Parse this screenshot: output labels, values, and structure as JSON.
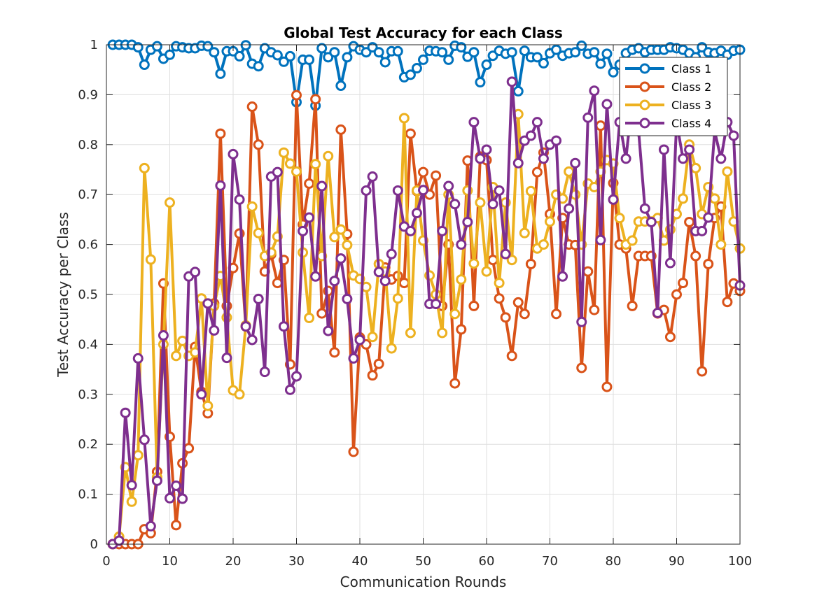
{
  "chart_data": {
    "type": "line",
    "title": "Global Test Accuracy for each Class",
    "xlabel": "Communication Rounds",
    "ylabel": "Test Accuracy per Class",
    "xlim": [
      0,
      100
    ],
    "ylim": [
      0,
      1
    ],
    "xticks": [
      0,
      10,
      20,
      30,
      40,
      50,
      60,
      70,
      80,
      90,
      100
    ],
    "yticks": [
      0,
      0.1,
      0.2,
      0.3,
      0.4,
      0.5,
      0.6,
      0.7,
      0.8,
      0.9,
      1
    ],
    "grid": true,
    "legend_position": "top-right",
    "x": [
      1,
      2,
      3,
      4,
      5,
      6,
      7,
      8,
      9,
      10,
      11,
      12,
      13,
      14,
      15,
      16,
      17,
      18,
      19,
      20,
      21,
      22,
      23,
      24,
      25,
      26,
      27,
      28,
      29,
      30,
      31,
      32,
      33,
      34,
      35,
      36,
      37,
      38,
      39,
      40,
      41,
      42,
      43,
      44,
      45,
      46,
      47,
      48,
      49,
      50,
      51,
      52,
      53,
      54,
      55,
      56,
      57,
      58,
      59,
      60,
      61,
      62,
      63,
      64,
      65,
      66,
      67,
      68,
      69,
      70,
      71,
      72,
      73,
      74,
      75,
      76,
      77,
      78,
      79,
      80,
      81,
      82,
      83,
      84,
      85,
      86,
      87,
      88,
      89,
      90,
      91,
      92,
      93,
      94,
      95,
      96,
      97,
      98,
      99,
      100
    ],
    "series": [
      {
        "name": "Class 1",
        "color": "#0072BD",
        "values": [
          1.0,
          1.0,
          1.0,
          1.0,
          0.995,
          0.96,
          0.99,
          0.997,
          0.972,
          0.98,
          0.997,
          0.995,
          0.993,
          0.993,
          0.998,
          0.997,
          0.985,
          0.942,
          0.987,
          0.987,
          0.977,
          0.999,
          0.962,
          0.957,
          0.993,
          0.985,
          0.979,
          0.966,
          0.977,
          0.885,
          0.97,
          0.97,
          0.878,
          0.993,
          0.975,
          0.985,
          0.918,
          0.975,
          0.997,
          0.99,
          0.985,
          0.995,
          0.985,
          0.965,
          0.987,
          0.987,
          0.935,
          0.94,
          0.953,
          0.97,
          0.988,
          0.987,
          0.985,
          0.97,
          0.998,
          0.995,
          0.976,
          0.985,
          0.925,
          0.96,
          0.978,
          0.988,
          0.982,
          0.985,
          0.907,
          0.988,
          0.975,
          0.975,
          0.963,
          0.983,
          0.99,
          0.978,
          0.983,
          0.985,
          0.998,
          0.982,
          0.985,
          0.962,
          0.982,
          0.945,
          0.96,
          0.983,
          0.99,
          0.993,
          0.985,
          0.99,
          0.99,
          0.99,
          0.995,
          0.993,
          0.99,
          0.983,
          0.975,
          0.995,
          0.985,
          0.983,
          0.988,
          0.98,
          0.988,
          0.99
        ]
      },
      {
        "name": "Class 2",
        "color": "#D95319",
        "values": [
          0.0,
          0.0,
          0.0,
          0.0,
          0.0,
          0.03,
          0.022,
          0.145,
          0.522,
          0.215,
          0.038,
          0.162,
          0.192,
          0.395,
          0.305,
          0.262,
          0.482,
          0.822,
          0.477,
          0.553,
          0.622,
          0.436,
          0.876,
          0.8,
          0.546,
          0.58,
          0.523,
          0.569,
          0.36,
          0.899,
          0.64,
          0.722,
          0.891,
          0.462,
          0.507,
          0.384,
          0.83,
          0.621,
          0.185,
          0.414,
          0.4,
          0.338,
          0.361,
          0.554,
          0.53,
          0.537,
          0.523,
          0.822,
          0.707,
          0.745,
          0.7,
          0.738,
          0.477,
          0.6,
          0.322,
          0.43,
          0.768,
          0.477,
          0.776,
          0.769,
          0.569,
          0.492,
          0.454,
          0.377,
          0.484,
          0.461,
          0.561,
          0.745,
          0.784,
          0.661,
          0.461,
          0.653,
          0.6,
          0.599,
          0.353,
          0.546,
          0.469,
          0.838,
          0.315,
          0.723,
          0.6,
          0.592,
          0.477,
          0.577,
          0.577,
          0.577,
          0.462,
          0.469,
          0.415,
          0.5,
          0.523,
          0.645,
          0.577,
          0.346,
          0.561,
          0.653,
          0.676,
          0.485,
          0.522,
          0.507
        ]
      },
      {
        "name": "Class 3",
        "color": "#EDB120",
        "values": [
          0.0,
          0.015,
          0.154,
          0.085,
          0.178,
          0.753,
          0.57,
          0.134,
          0.4,
          0.684,
          0.377,
          0.407,
          0.377,
          0.384,
          0.492,
          0.277,
          0.477,
          0.537,
          0.454,
          0.308,
          0.3,
          0.438,
          0.676,
          0.623,
          0.577,
          0.584,
          0.616,
          0.784,
          0.762,
          0.746,
          0.584,
          0.453,
          0.761,
          0.577,
          0.777,
          0.615,
          0.63,
          0.599,
          0.538,
          0.531,
          0.515,
          0.415,
          0.561,
          0.546,
          0.392,
          0.492,
          0.853,
          0.423,
          0.708,
          0.608,
          0.538,
          0.5,
          0.423,
          0.7,
          0.461,
          0.53,
          0.708,
          0.562,
          0.684,
          0.546,
          0.715,
          0.523,
          0.684,
          0.569,
          0.861,
          0.623,
          0.707,
          0.592,
          0.6,
          0.646,
          0.7,
          0.692,
          0.746,
          0.7,
          0.6,
          0.722,
          0.715,
          0.746,
          0.769,
          0.762,
          0.653,
          0.6,
          0.608,
          0.646,
          0.646,
          0.646,
          0.653,
          0.608,
          0.63,
          0.661,
          0.692,
          0.8,
          0.753,
          0.661,
          0.715,
          0.692,
          0.6,
          0.746,
          0.646,
          0.592
        ]
      },
      {
        "name": "Class 4",
        "color": "#7E2F8E",
        "values": [
          0.0,
          0.007,
          0.263,
          0.118,
          0.372,
          0.209,
          0.036,
          0.127,
          0.418,
          0.092,
          0.117,
          0.091,
          0.536,
          0.545,
          0.3,
          0.482,
          0.428,
          0.718,
          0.373,
          0.781,
          0.69,
          0.436,
          0.409,
          0.491,
          0.345,
          0.736,
          0.745,
          0.436,
          0.309,
          0.336,
          0.627,
          0.654,
          0.536,
          0.717,
          0.427,
          0.527,
          0.572,
          0.491,
          0.372,
          0.409,
          0.708,
          0.736,
          0.545,
          0.527,
          0.581,
          0.708,
          0.636,
          0.627,
          0.663,
          0.709,
          0.481,
          0.481,
          0.627,
          0.717,
          0.681,
          0.6,
          0.645,
          0.845,
          0.772,
          0.79,
          0.681,
          0.708,
          0.581,
          0.926,
          0.763,
          0.808,
          0.818,
          0.845,
          0.772,
          0.8,
          0.808,
          0.536,
          0.672,
          0.763,
          0.445,
          0.854,
          0.908,
          0.609,
          0.881,
          0.69,
          0.845,
          0.772,
          0.89,
          0.827,
          0.672,
          0.645,
          0.463,
          0.79,
          0.563,
          0.845,
          0.772,
          0.79,
          0.627,
          0.627,
          0.654,
          0.827,
          0.772,
          0.845,
          0.818,
          0.518
        ]
      }
    ]
  }
}
